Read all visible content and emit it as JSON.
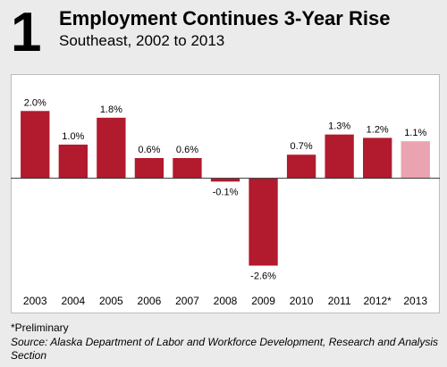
{
  "figure": {
    "number": "1",
    "title": "Employment Continues 3-Year Rise",
    "subtitle": "Southeast, 2002 to 2013",
    "note": "*Preliminary",
    "source": "Source: Alaska Department of Labor and Workforce Development, Research and Analysis Section"
  },
  "colors": {
    "bar": "#b21a2e",
    "bar_preliminary": "#eaa3b0",
    "axis": "#333333"
  },
  "chart_data": {
    "type": "bar",
    "categories": [
      "2003",
      "2004",
      "2005",
      "2006",
      "2007",
      "2008",
      "2009",
      "2010",
      "2011",
      "2012*",
      "2013"
    ],
    "values": [
      2.0,
      1.0,
      1.8,
      0.6,
      0.6,
      -0.1,
      -2.6,
      0.7,
      1.3,
      1.2,
      1.1
    ],
    "value_labels": [
      "2.0%",
      "1.0%",
      "1.8%",
      "0.6%",
      "0.6%",
      "-0.1%",
      "-2.6%",
      "0.7%",
      "1.3%",
      "1.2%",
      "1.1%"
    ],
    "highlighted_category": "2013",
    "ylim": [
      -2.8,
      2.3
    ],
    "grid": false,
    "legend": "none"
  }
}
